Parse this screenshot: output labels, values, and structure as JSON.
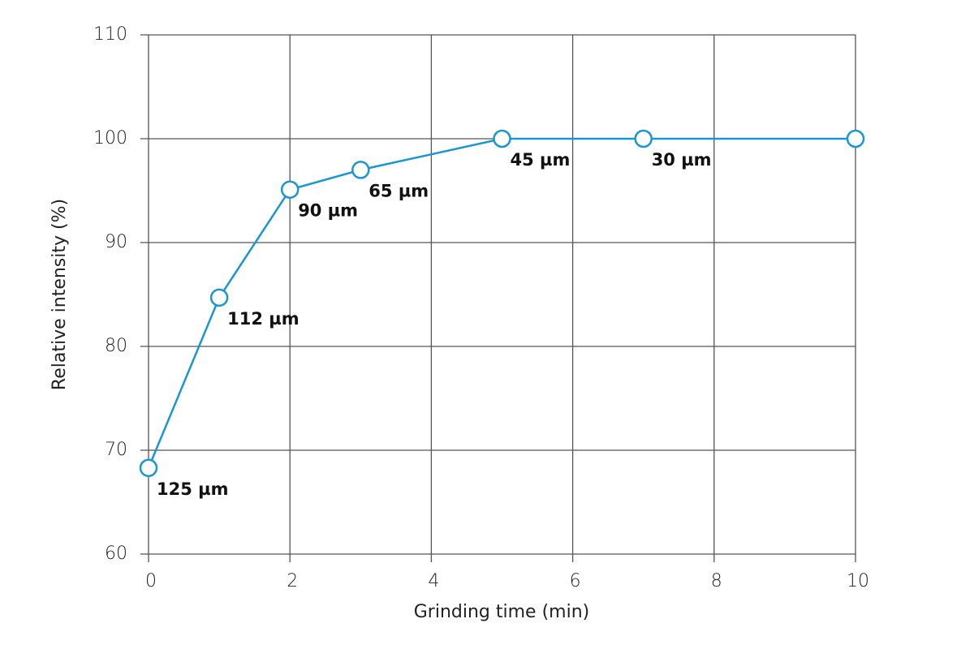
{
  "chart_data": {
    "type": "line",
    "x_label": "Grinding time (min)",
    "y_label": "Relative intensity (%)",
    "x": [
      0,
      1,
      2,
      3,
      5,
      7,
      10
    ],
    "series": [
      {
        "color": "#1a96d4",
        "values": [
          68.3,
          84.7,
          95.1,
          97,
          100,
          100,
          100
        ],
        "point_labels": [
          "125 µm",
          "112 µm",
          "90 µm",
          "65 µm",
          "45 µm",
          "30 µm",
          null
        ]
      }
    ],
    "xlim": [
      0,
      10
    ],
    "xticks": [
      0,
      2,
      4,
      6,
      8,
      10
    ],
    "ylim": [
      60,
      110
    ],
    "yticks": [
      60,
      70,
      80,
      90,
      100,
      110
    ],
    "grid": true
  }
}
